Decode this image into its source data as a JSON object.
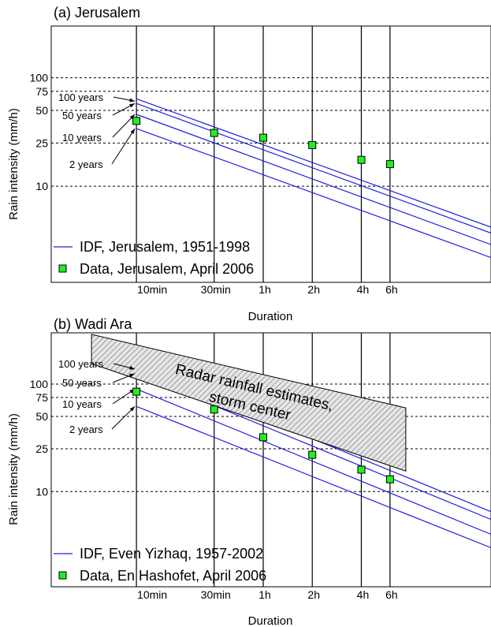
{
  "chart_data": [
    {
      "type": "line",
      "title": "(a) Jerusalem",
      "xlabel": "Duration",
      "ylabel": "Rain intensity (mm/h)",
      "x_ticks": [
        "10min",
        "30min",
        "1h",
        "2h",
        "4h",
        "6h"
      ],
      "x_tick_minutes": [
        10,
        30,
        60,
        120,
        240,
        360
      ],
      "y_ticks": [
        100,
        75,
        50,
        25,
        10
      ],
      "xlim_minutes": [
        3,
        1500
      ],
      "ylim": [
        1.3,
        300
      ],
      "y_scale": "log",
      "x_scale": "log",
      "legend": [
        {
          "label": "IDF, Jerusalem, 1951-1998",
          "kind": "line"
        },
        {
          "label": "Data, Jerusalem, April 2006",
          "kind": "marker"
        }
      ],
      "legend_position": "bottom-left",
      "return_period_labels": [
        "100 years",
        "50 years",
        "10 years",
        "2 years"
      ],
      "idf_series": [
        {
          "name": "100 years",
          "x": [
            10,
            1500
          ],
          "y": [
            64,
            4.2
          ]
        },
        {
          "name": "50 years",
          "x": [
            10,
            1500
          ],
          "y": [
            58,
            3.7
          ]
        },
        {
          "name": "10 years",
          "x": [
            10,
            1500
          ],
          "y": [
            46,
            2.9
          ]
        },
        {
          "name": "2 years",
          "x": [
            10,
            1500
          ],
          "y": [
            34,
            2.2
          ]
        }
      ],
      "data_points": {
        "x": [
          10,
          30,
          60,
          120,
          240,
          360
        ],
        "y": [
          40,
          31,
          28,
          24,
          17.5,
          16
        ]
      }
    },
    {
      "type": "line",
      "title": "(b) Wadi Ara",
      "xlabel": "Duration",
      "ylabel": "Rain intensity (mm/h)",
      "x_ticks": [
        "10min",
        "30min",
        "1h",
        "2h",
        "4h",
        "6h"
      ],
      "x_tick_minutes": [
        10,
        30,
        60,
        120,
        240,
        360
      ],
      "y_ticks": [
        100,
        75,
        50,
        25,
        10
      ],
      "xlim_minutes": [
        3,
        1500
      ],
      "ylim": [
        1.3,
        300
      ],
      "y_scale": "log",
      "x_scale": "log",
      "legend": [
        {
          "label": "IDF, Even Yizhaq, 1957-2002",
          "kind": "line"
        },
        {
          "label": "Data, En Hashofet, April 2006",
          "kind": "marker"
        }
      ],
      "legend_position": "bottom-left",
      "return_period_labels": [
        "100 years",
        "50 years",
        "10 years",
        "2 years"
      ],
      "idf_series": [
        {
          "name": "100 years",
          "x": [
            10,
            1500
          ],
          "y": [
            145,
            6.5
          ]
        },
        {
          "name": "50 years",
          "x": [
            10,
            1500
          ],
          "y": [
            125,
            5.5
          ]
        },
        {
          "name": "10 years",
          "x": [
            10,
            1500
          ],
          "y": [
            90,
            4
          ]
        },
        {
          "name": "2 years",
          "x": [
            10,
            1500
          ],
          "y": [
            62,
            3
          ]
        }
      ],
      "data_points": {
        "x": [
          10,
          30,
          60,
          120,
          240,
          360
        ],
        "y": [
          85,
          58,
          32,
          22,
          16,
          13
        ]
      },
      "annotation": {
        "text_lines": [
          "Radar rainfall estimates,",
          "storm center"
        ],
        "region": {
          "x": [
            5.3,
            450
          ],
          "y_top": [
            290,
            60
          ],
          "y_bottom": [
            155,
            15.5
          ]
        }
      }
    }
  ],
  "colors": {
    "idf_line": "#1f1fe0",
    "marker_fill": "#22ee22",
    "marker_stroke": "#000000",
    "hatch": "#888888",
    "hatch_fill": "#e6e6e6"
  }
}
